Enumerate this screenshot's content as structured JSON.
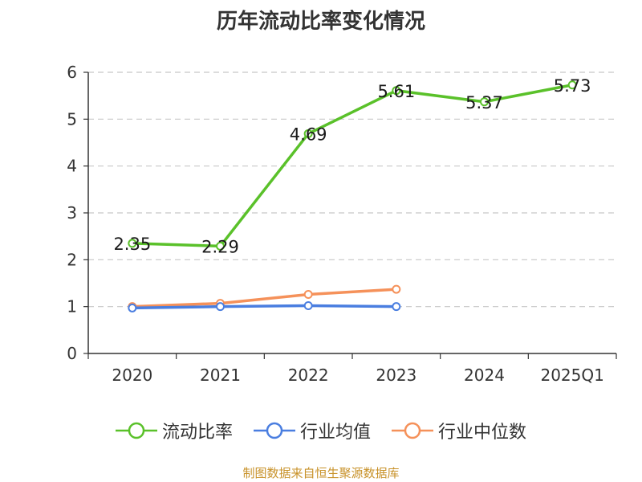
{
  "chart_data": {
    "type": "line",
    "title": "历年流动比率变化情况",
    "categories": [
      "2020",
      "2021",
      "2022",
      "2023",
      "2024",
      "2025Q1"
    ],
    "ylim": [
      0,
      6
    ],
    "yticks": [
      "0",
      "1",
      "2",
      "3",
      "4",
      "5",
      "6"
    ],
    "grid": true,
    "series": [
      {
        "name": "流动比率",
        "color": "#5ac12a",
        "values": [
          2.35,
          2.29,
          4.69,
          5.61,
          5.37,
          5.73
        ],
        "labels": [
          "2.35",
          "2.29",
          "4.69",
          "5.61",
          "5.37",
          "5.73"
        ]
      },
      {
        "name": "行业均值",
        "color": "#4a7ee0",
        "values": [
          0.97,
          1.0,
          1.02,
          1.0,
          null,
          null
        ]
      },
      {
        "name": "行业中位数",
        "color": "#f5915a",
        "values": [
          1.0,
          1.07,
          1.26,
          1.37,
          null,
          null
        ]
      }
    ],
    "legend_position": "bottom"
  },
  "source": "制图数据来自恒生聚源数据库"
}
